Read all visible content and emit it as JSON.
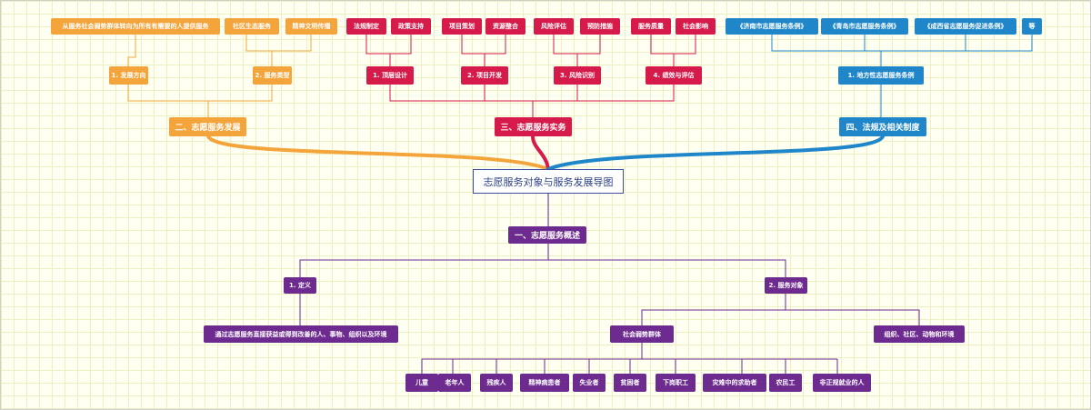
{
  "root": "志愿服务对象与服务发展导图",
  "branch1": {
    "title": "一、志愿服务概述",
    "definition": {
      "label": "1. 定义",
      "detail": "通过志愿服务直接获益或得到改善的人、事物、组织以及环境"
    },
    "objects": {
      "label": "2. 服务对象",
      "groups": {
        "label": "社会弱势群体"
      },
      "others": "组织、社区、动物和环境",
      "list": [
        "儿童",
        "老年人",
        "残疾人",
        "精神病患者",
        "失业者",
        "贫困者",
        "下岗职工",
        "灾难中的求助者",
        "农民工",
        "非正规就业的人"
      ]
    }
  },
  "branch2": {
    "title": "二、志愿服务发展",
    "direction": {
      "label": "1. 发展方向",
      "detail": "从服务社会弱势群体转向为所有有需要的人提供服务"
    },
    "types": {
      "label": "2. 服务类型",
      "items": [
        "社区生态服务",
        "精神文明传播"
      ]
    }
  },
  "branch3": {
    "title": "三、志愿服务实务",
    "subs": [
      {
        "label": "1. 顶层设计",
        "items": [
          "法规制定",
          "政策支持"
        ]
      },
      {
        "label": "2. 项目开发",
        "items": [
          "项目策划",
          "资源整合"
        ]
      },
      {
        "label": "3. 风险识别",
        "items": [
          "风险评估",
          "预防措施"
        ]
      },
      {
        "label": "4. 绩效与评估",
        "items": [
          "服务质量",
          "社会影响"
        ]
      }
    ]
  },
  "branch4": {
    "title": "四、法规及相关制度",
    "local": {
      "label": "1. 地方性志愿服务条例",
      "items": [
        "《济南市志愿服务条例》",
        "《青岛市志愿服务条例》",
        "《成西省志愿服务促进条例》",
        "等"
      ]
    }
  },
  "colors": {
    "orange": "#f3a43a",
    "red": "#d61a4a",
    "blue": "#1f86c9",
    "purple": "#6d2a8f"
  }
}
